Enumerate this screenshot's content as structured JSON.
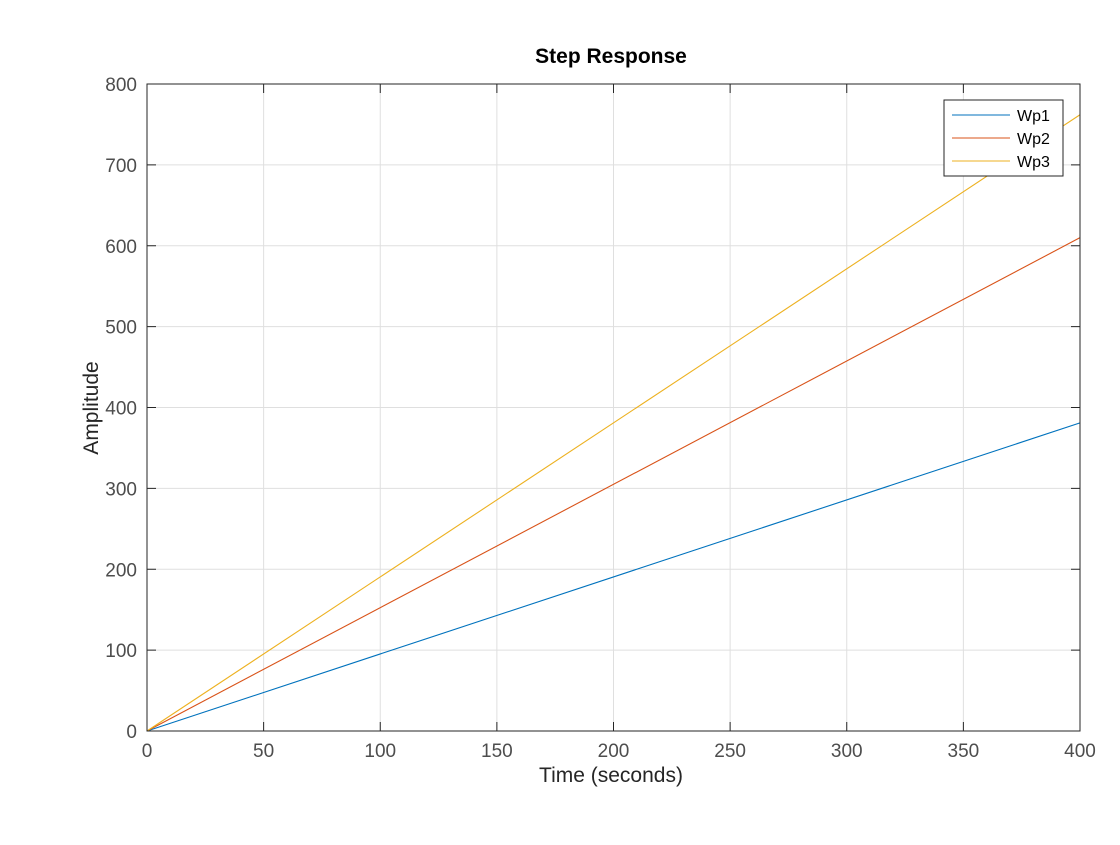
{
  "chart_data": {
    "type": "line",
    "title": "Step Response",
    "xlabel": "Time (seconds)",
    "ylabel": "Amplitude",
    "xlim": [
      0,
      400
    ],
    "ylim": [
      0,
      800
    ],
    "xticks": [
      0,
      50,
      100,
      150,
      200,
      250,
      300,
      350,
      400
    ],
    "yticks": [
      0,
      100,
      200,
      300,
      400,
      500,
      600,
      700,
      800
    ],
    "xtick_labels": [
      "0",
      "50",
      "100",
      "150",
      "200",
      "250",
      "300",
      "350",
      "400"
    ],
    "ytick_labels": [
      "0",
      "100",
      "200",
      "300",
      "400",
      "500",
      "600",
      "700",
      "800"
    ],
    "grid": true,
    "legend": {
      "placement": "top-right"
    },
    "series": [
      {
        "name": "Wp1",
        "color": "#0072BD",
        "x": [
          0,
          400
        ],
        "y": [
          0,
          381
        ]
      },
      {
        "name": "Wp2",
        "color": "#D95319",
        "x": [
          0,
          400
        ],
        "y": [
          0,
          610
        ]
      },
      {
        "name": "Wp3",
        "color": "#EDB120",
        "x": [
          0,
          400
        ],
        "y": [
          0,
          762
        ]
      }
    ]
  }
}
